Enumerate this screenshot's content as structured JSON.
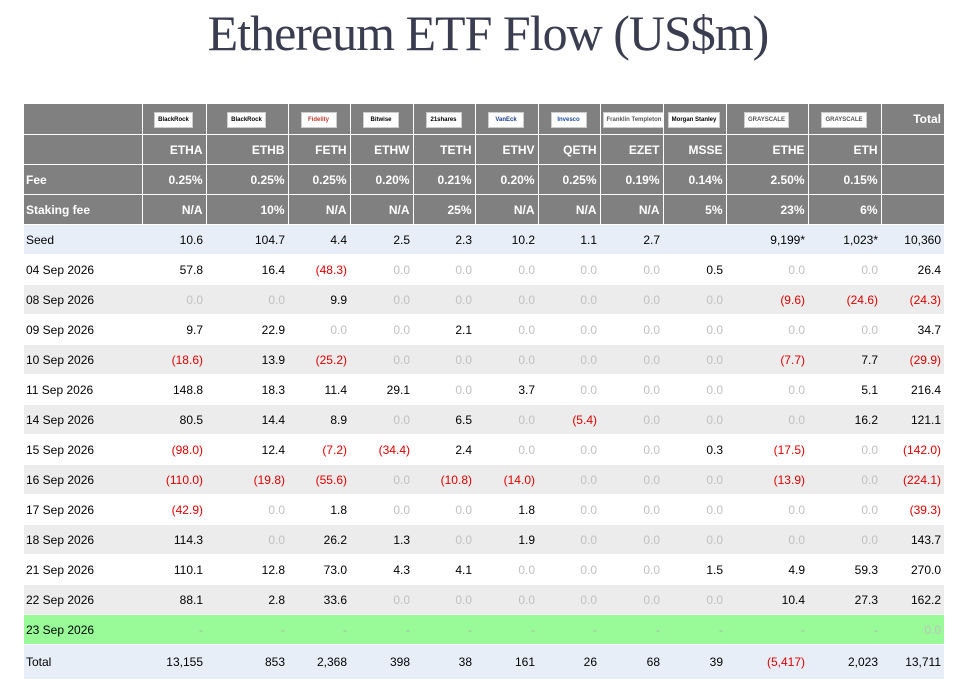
{
  "title": "Ethereum ETF Flow (US$m)",
  "header": {
    "logos": [
      "BlackRock",
      "BlackRock",
      "Fidelity",
      "Bitwise",
      "21shares",
      "VanEck",
      "Invesco",
      "Franklin Templeton",
      "Morgan Stanley",
      "GRAYSCALE",
      "GRAYSCALE"
    ],
    "logo_colors": [
      "#000000",
      "#000000",
      "#c0392b",
      "#000000",
      "#000000",
      "#1a3b8a",
      "#1a4ea0",
      "#555555",
      "#000000",
      "#555555",
      "#555555"
    ],
    "total_label": "Total",
    "tickers": [
      "ETHA",
      "ETHB",
      "FETH",
      "ETHW",
      "TETH",
      "ETHV",
      "QETH",
      "EZET",
      "MSSE",
      "ETHE",
      "ETH"
    ],
    "fee_label": "Fee",
    "fees": [
      "0.25%",
      "0.25%",
      "0.25%",
      "0.20%",
      "0.21%",
      "0.20%",
      "0.25%",
      "0.19%",
      "0.14%",
      "2.50%",
      "0.15%"
    ],
    "staking_label": "Staking fee",
    "staking": [
      "N/A",
      "10%",
      "N/A",
      "N/A",
      "25%",
      "N/A",
      "N/A",
      "N/A",
      "5%",
      "23%",
      "6%"
    ]
  },
  "rows": [
    {
      "date": "Seed",
      "vals": [
        "10.6",
        "104.7",
        "4.4",
        "2.5",
        "2.3",
        "10.2",
        "1.1",
        "2.7",
        "",
        "9,199*",
        "1,023*"
      ],
      "total": "10,360"
    },
    {
      "date": "04 Sep 2026",
      "vals": [
        "57.8",
        "16.4",
        "(48.3)",
        "0.0",
        "0.0",
        "0.0",
        "0.0",
        "0.0",
        "0.5",
        "0.0",
        "0.0"
      ],
      "total": "26.4"
    },
    {
      "date": "08 Sep 2026",
      "vals": [
        "0.0",
        "0.0",
        "9.9",
        "0.0",
        "0.0",
        "0.0",
        "0.0",
        "0.0",
        "0.0",
        "(9.6)",
        "(24.6)"
      ],
      "total": "(24.3)"
    },
    {
      "date": "09 Sep 2026",
      "vals": [
        "9.7",
        "22.9",
        "0.0",
        "0.0",
        "2.1",
        "0.0",
        "0.0",
        "0.0",
        "0.0",
        "0.0",
        "0.0"
      ],
      "total": "34.7"
    },
    {
      "date": "10 Sep 2026",
      "vals": [
        "(18.6)",
        "13.9",
        "(25.2)",
        "0.0",
        "0.0",
        "0.0",
        "0.0",
        "0.0",
        "0.0",
        "(7.7)",
        "7.7"
      ],
      "total": "(29.9)"
    },
    {
      "date": "11 Sep 2026",
      "vals": [
        "148.8",
        "18.3",
        "11.4",
        "29.1",
        "0.0",
        "3.7",
        "0.0",
        "0.0",
        "0.0",
        "0.0",
        "5.1"
      ],
      "total": "216.4"
    },
    {
      "date": "14 Sep 2026",
      "vals": [
        "80.5",
        "14.4",
        "8.9",
        "0.0",
        "6.5",
        "0.0",
        "(5.4)",
        "0.0",
        "0.0",
        "0.0",
        "16.2"
      ],
      "total": "121.1"
    },
    {
      "date": "15 Sep 2026",
      "vals": [
        "(98.0)",
        "12.4",
        "(7.2)",
        "(34.4)",
        "2.4",
        "0.0",
        "0.0",
        "0.0",
        "0.3",
        "(17.5)",
        "0.0"
      ],
      "total": "(142.0)"
    },
    {
      "date": "16 Sep 2026",
      "vals": [
        "(110.0)",
        "(19.8)",
        "(55.6)",
        "0.0",
        "(10.8)",
        "(14.0)",
        "0.0",
        "0.0",
        "0.0",
        "(13.9)",
        "0.0"
      ],
      "total": "(224.1)"
    },
    {
      "date": "17 Sep 2026",
      "vals": [
        "(42.9)",
        "0.0",
        "1.8",
        "0.0",
        "0.0",
        "1.8",
        "0.0",
        "0.0",
        "0.0",
        "0.0",
        "0.0"
      ],
      "total": "(39.3)"
    },
    {
      "date": "18 Sep 2026",
      "vals": [
        "114.3",
        "0.0",
        "26.2",
        "1.3",
        "0.0",
        "1.9",
        "0.0",
        "0.0",
        "0.0",
        "0.0",
        "0.0"
      ],
      "total": "143.7"
    },
    {
      "date": "21 Sep 2026",
      "vals": [
        "110.1",
        "12.8",
        "73.0",
        "4.3",
        "4.1",
        "0.0",
        "0.0",
        "0.0",
        "1.5",
        "4.9",
        "59.3"
      ],
      "total": "270.0"
    },
    {
      "date": "22 Sep 2026",
      "vals": [
        "88.1",
        "2.8",
        "33.6",
        "0.0",
        "0.0",
        "0.0",
        "0.0",
        "0.0",
        "0.0",
        "10.4",
        "27.3"
      ],
      "total": "162.2"
    },
    {
      "date": "23 Sep 2026",
      "vals": [
        "-",
        "-",
        "-",
        "-",
        "-",
        "-",
        "-",
        "-",
        "-",
        "-",
        "-"
      ],
      "total": "0.0",
      "today": true
    },
    {
      "date": "Total",
      "vals": [
        "13,155",
        "853",
        "2,368",
        "398",
        "38",
        "161",
        "26",
        "68",
        "39",
        "(5,417)",
        "2,023"
      ],
      "total": "13,711",
      "is_total": true
    }
  ]
}
